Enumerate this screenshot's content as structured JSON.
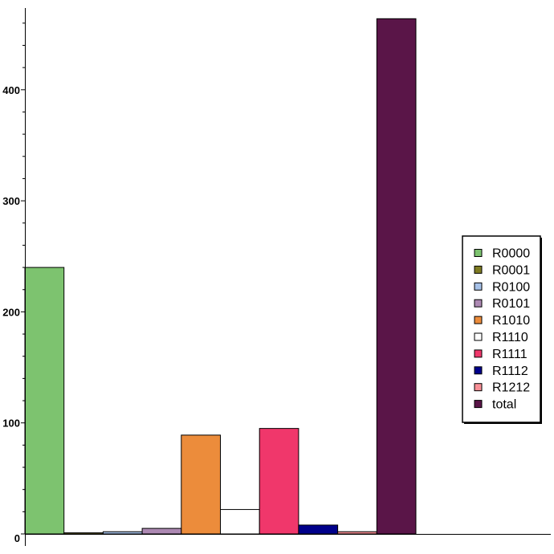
{
  "chart_data": {
    "type": "bar",
    "title": "",
    "xlabel": "",
    "ylabel": "",
    "ylim": [
      0,
      475
    ],
    "yticks": [
      0,
      100,
      200,
      300,
      400
    ],
    "yticklabels": [
      "0",
      "100",
      "200",
      "300",
      "400"
    ],
    "grid": false,
    "legend_position": "right",
    "series": [
      {
        "name": "R0000",
        "value": 240,
        "color": "#7dc36f"
      },
      {
        "name": "R0001",
        "value": 1,
        "color": "#7e7b22"
      },
      {
        "name": "R0100",
        "value": 2,
        "color": "#a6c1e8"
      },
      {
        "name": "R0101",
        "value": 5,
        "color": "#ad89b3"
      },
      {
        "name": "R1010",
        "value": 89,
        "color": "#ec8c3b"
      },
      {
        "name": "R1110",
        "value": 22,
        "color": "#ffffff"
      },
      {
        "name": "R1111",
        "value": 95,
        "color": "#f0376b"
      },
      {
        "name": "R1112",
        "value": 8,
        "color": "#00008b"
      },
      {
        "name": "R1212",
        "value": 2,
        "color": "#f88f96"
      },
      {
        "name": "total",
        "value": 464,
        "color": "#5a1548"
      }
    ]
  }
}
